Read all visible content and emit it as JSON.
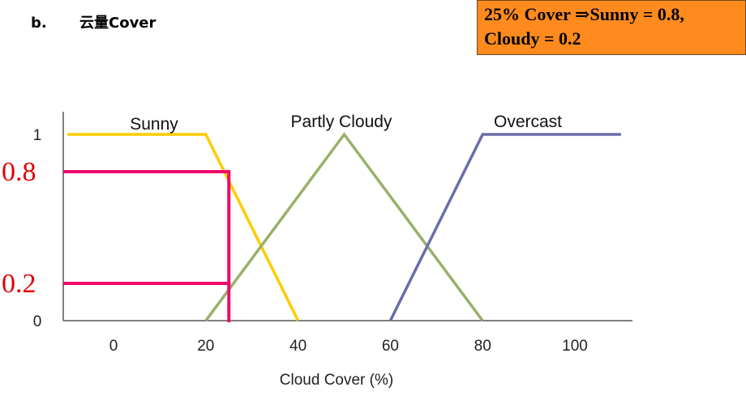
{
  "heading": {
    "label": "b.",
    "title": "云量Cover"
  },
  "callout": {
    "line1": "25% Cover ⇒Sunny = 0.8,",
    "line2": "Cloudy = 0.2"
  },
  "colors": {
    "sunny": "#ffcc00",
    "partly_cloudy": "#9ab06a",
    "overcast": "#6a6ea8",
    "marker": "#ee0a6a",
    "marker_text": "#e30000"
  },
  "chart_data": {
    "type": "line",
    "xlabel": "Cloud Cover (%)",
    "ylabel": "",
    "xlim": [
      -10,
      110
    ],
    "ylim": [
      0,
      1
    ],
    "x_ticks": [
      0,
      20,
      40,
      60,
      80,
      100
    ],
    "y_ticks": [
      {
        "value": 0,
        "label": "0"
      },
      {
        "value": 1,
        "label": "1"
      }
    ],
    "series": [
      {
        "name": "Sunny",
        "color": "#ffcc00",
        "points": [
          [
            -10,
            1
          ],
          [
            20,
            1
          ],
          [
            40,
            0
          ]
        ]
      },
      {
        "name": "Partly Cloudy",
        "color": "#9ab06a",
        "points": [
          [
            20,
            0
          ],
          [
            50,
            1
          ],
          [
            80,
            0
          ]
        ]
      },
      {
        "name": "Overcast",
        "color": "#6a6ea8",
        "points": [
          [
            60,
            0
          ],
          [
            80,
            1
          ],
          [
            110,
            1
          ]
        ]
      }
    ],
    "markers": {
      "x": 25,
      "levels": [
        {
          "value": 0.8,
          "label": "0.8"
        },
        {
          "value": 0.2,
          "label": "0.2"
        }
      ]
    }
  }
}
